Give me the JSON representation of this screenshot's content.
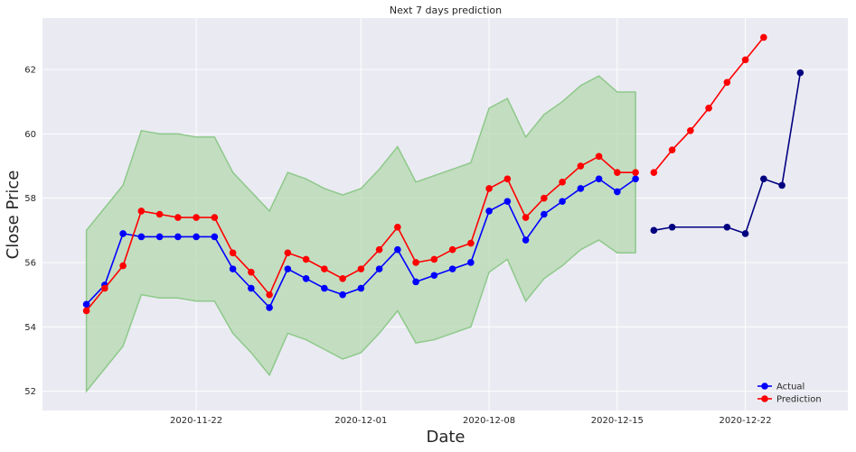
{
  "chart_data": {
    "type": "line",
    "title": "Next 7 days prediction",
    "xlabel": "Date",
    "ylabel": "Close Price",
    "x_range": [
      "2020-11-13",
      "2020-12-27"
    ],
    "ylim": [
      51.4,
      63.6
    ],
    "y_ticks": [
      52,
      54,
      56,
      58,
      60,
      62
    ],
    "x_ticks": [
      "2020-11-22",
      "2020-12-01",
      "2020-12-08",
      "2020-12-15",
      "2020-12-22"
    ],
    "grid": true,
    "legend_position": "bottom-right",
    "series": [
      {
        "name": "Actual",
        "color": "#0000ff",
        "x": [
          "2020-11-16",
          "2020-11-17",
          "2020-11-18",
          "2020-11-19",
          "2020-11-20",
          "2020-11-21",
          "2020-11-22",
          "2020-11-23",
          "2020-11-24",
          "2020-11-25",
          "2020-11-26",
          "2020-11-27",
          "2020-11-28",
          "2020-11-29",
          "2020-11-30",
          "2020-12-01",
          "2020-12-02",
          "2020-12-03",
          "2020-12-04",
          "2020-12-05",
          "2020-12-06",
          "2020-12-07",
          "2020-12-08",
          "2020-12-09",
          "2020-12-10",
          "2020-12-11",
          "2020-12-12",
          "2020-12-13",
          "2020-12-14",
          "2020-12-15",
          "2020-12-16"
        ],
        "y": [
          54.7,
          55.3,
          56.9,
          56.8,
          56.8,
          56.8,
          56.8,
          56.8,
          55.8,
          55.2,
          54.6,
          55.8,
          55.5,
          55.2,
          55.0,
          55.2,
          55.8,
          56.4,
          55.4,
          55.6,
          55.8,
          56.0,
          57.6,
          57.9,
          56.7,
          57.5,
          57.9,
          58.3,
          58.6,
          58.2,
          58.6
        ]
      },
      {
        "name": "Prediction",
        "color": "#ff0000",
        "x": [
          "2020-11-16",
          "2020-11-17",
          "2020-11-18",
          "2020-11-19",
          "2020-11-20",
          "2020-11-21",
          "2020-11-22",
          "2020-11-23",
          "2020-11-24",
          "2020-11-25",
          "2020-11-26",
          "2020-11-27",
          "2020-11-28",
          "2020-11-29",
          "2020-11-30",
          "2020-12-01",
          "2020-12-02",
          "2020-12-03",
          "2020-12-04",
          "2020-12-05",
          "2020-12-06",
          "2020-12-07",
          "2020-12-08",
          "2020-12-09",
          "2020-12-10",
          "2020-12-11",
          "2020-12-12",
          "2020-12-13",
          "2020-12-14",
          "2020-12-15",
          "2020-12-16"
        ],
        "y": [
          54.5,
          55.2,
          55.9,
          57.6,
          57.5,
          57.4,
          57.4,
          57.4,
          56.3,
          55.7,
          55.0,
          56.3,
          56.1,
          55.8,
          55.5,
          55.8,
          56.4,
          57.1,
          56.0,
          56.1,
          56.4,
          56.6,
          58.3,
          58.6,
          57.4,
          58.0,
          58.5,
          59.0,
          59.3,
          58.8,
          58.8
        ]
      },
      {
        "name": "",
        "color": "#ff0000",
        "x": [
          "2020-12-17",
          "2020-12-18",
          "2020-12-19",
          "2020-12-20",
          "2020-12-21",
          "2020-12-22",
          "2020-12-23"
        ],
        "y": [
          58.8,
          59.5,
          60.1,
          60.8,
          61.6,
          62.3,
          63.0
        ]
      },
      {
        "name": "",
        "color": "#000080",
        "x": [
          "2020-12-17",
          "2020-12-18",
          "2020-12-21",
          "2020-12-22",
          "2020-12-23",
          "2020-12-24",
          "2020-12-25"
        ],
        "y": [
          57.0,
          57.1,
          57.1,
          56.9,
          58.6,
          58.4,
          61.9
        ]
      }
    ],
    "band": {
      "color": "#b5d8b0",
      "x": [
        "2020-11-16",
        "2020-11-17",
        "2020-11-18",
        "2020-11-19",
        "2020-11-20",
        "2020-11-21",
        "2020-11-22",
        "2020-11-23",
        "2020-11-24",
        "2020-11-25",
        "2020-11-26",
        "2020-11-27",
        "2020-11-28",
        "2020-11-29",
        "2020-11-30",
        "2020-12-01",
        "2020-12-02",
        "2020-12-03",
        "2020-12-04",
        "2020-12-05",
        "2020-12-06",
        "2020-12-07",
        "2020-12-08",
        "2020-12-09",
        "2020-12-10",
        "2020-12-11",
        "2020-12-12",
        "2020-12-13",
        "2020-12-14",
        "2020-12-15",
        "2020-12-16"
      ],
      "upper": [
        57.0,
        57.7,
        58.4,
        60.1,
        60.0,
        60.0,
        59.9,
        59.9,
        58.8,
        58.2,
        57.6,
        58.8,
        58.6,
        58.3,
        58.1,
        58.3,
        58.9,
        59.6,
        58.5,
        58.7,
        58.9,
        59.1,
        60.8,
        61.1,
        59.9,
        60.6,
        61.0,
        61.5,
        61.8,
        61.3,
        61.3
      ],
      "lower": [
        52.0,
        52.7,
        53.4,
        55.0,
        54.9,
        54.9,
        54.8,
        54.8,
        53.8,
        53.2,
        52.5,
        53.8,
        53.6,
        53.3,
        53.0,
        53.2,
        53.8,
        54.5,
        53.5,
        53.6,
        53.8,
        54.0,
        55.7,
        56.1,
        54.8,
        55.5,
        55.9,
        56.4,
        56.7,
        56.3,
        56.3
      ]
    }
  }
}
